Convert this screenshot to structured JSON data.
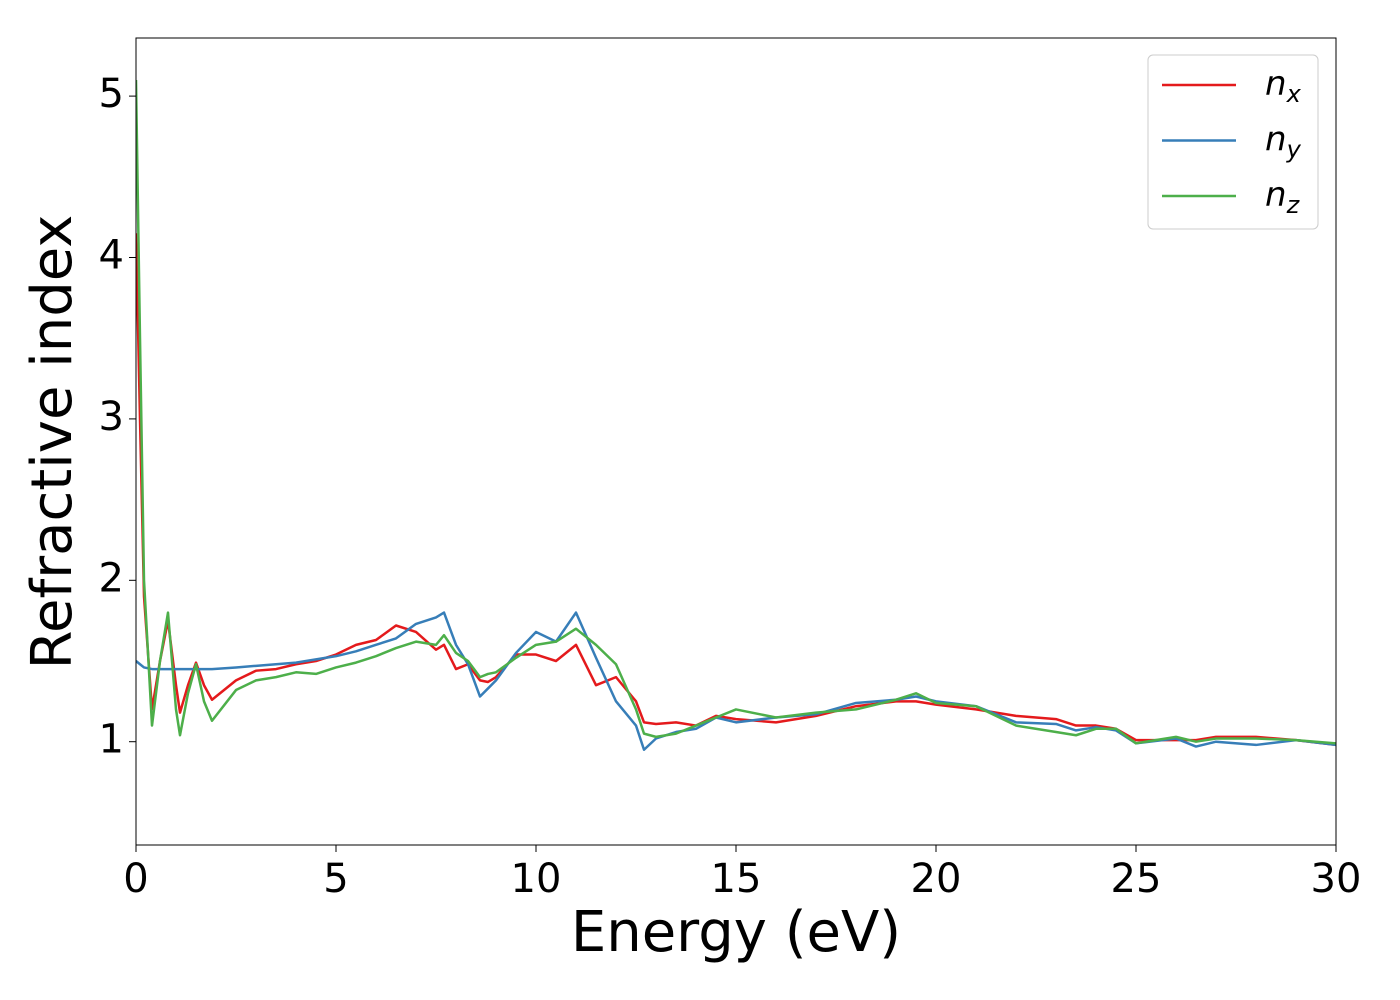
{
  "chart_data": {
    "type": "line",
    "x_label": "Energy (eV)",
    "y_label": "Refractive index",
    "xlim": [
      0,
      30
    ],
    "ylim": [
      0.36,
      5.36
    ],
    "xticks": [
      0,
      5,
      10,
      15,
      20,
      25,
      30
    ],
    "yticks": [
      1,
      2,
      3,
      4,
      5
    ],
    "grid": false,
    "legend": "upper right",
    "x": [
      0,
      0.1,
      0.2,
      0.4,
      0.6,
      0.8,
      1.0,
      1.1,
      1.3,
      1.5,
      1.7,
      1.9,
      2.5,
      3,
      3.5,
      4,
      4.5,
      5,
      5.5,
      6,
      6.5,
      7,
      7.5,
      7.7,
      8,
      8.3,
      8.6,
      8.8,
      9,
      9.5,
      10,
      10.5,
      11,
      11.5,
      12,
      12.5,
      12.7,
      13,
      13.5,
      14,
      14.5,
      15,
      16,
      17,
      18,
      19,
      19.5,
      20,
      21,
      22,
      23,
      23.5,
      24,
      24.5,
      25,
      26,
      26.5,
      27,
      28,
      29,
      30
    ],
    "series": [
      {
        "name": "n_x",
        "color": "#e41a1c",
        "values": [
          4.15,
          3.0,
          1.9,
          1.2,
          1.5,
          1.75,
          1.35,
          1.18,
          1.35,
          1.49,
          1.35,
          1.26,
          1.38,
          1.44,
          1.45,
          1.48,
          1.5,
          1.54,
          1.6,
          1.63,
          1.72,
          1.68,
          1.57,
          1.6,
          1.45,
          1.48,
          1.38,
          1.37,
          1.4,
          1.54,
          1.54,
          1.5,
          1.6,
          1.35,
          1.4,
          1.25,
          1.12,
          1.11,
          1.12,
          1.1,
          1.16,
          1.14,
          1.12,
          1.16,
          1.22,
          1.25,
          1.25,
          1.23,
          1.2,
          1.16,
          1.14,
          1.1,
          1.1,
          1.08,
          1.01,
          1.01,
          1.01,
          1.03,
          1.03,
          1.01,
          0.98
        ]
      },
      {
        "name": "n_y",
        "color": "#377eb8",
        "values": [
          1.5,
          1.48,
          1.46,
          1.45,
          1.45,
          1.45,
          1.45,
          1.45,
          1.45,
          1.45,
          1.45,
          1.45,
          1.46,
          1.47,
          1.48,
          1.49,
          1.51,
          1.53,
          1.56,
          1.6,
          1.64,
          1.73,
          1.77,
          1.8,
          1.6,
          1.48,
          1.28,
          1.33,
          1.38,
          1.55,
          1.68,
          1.62,
          1.8,
          1.52,
          1.25,
          1.1,
          0.95,
          1.02,
          1.06,
          1.08,
          1.15,
          1.12,
          1.15,
          1.17,
          1.24,
          1.26,
          1.28,
          1.25,
          1.22,
          1.12,
          1.11,
          1.07,
          1.09,
          1.07,
          0.99,
          1.02,
          0.97,
          1.0,
          0.98,
          1.01,
          0.98
        ]
      },
      {
        "name": "n_z",
        "color": "#4daf4a",
        "values": [
          5.1,
          3.5,
          2.0,
          1.1,
          1.5,
          1.8,
          1.2,
          1.04,
          1.3,
          1.48,
          1.25,
          1.13,
          1.32,
          1.38,
          1.4,
          1.43,
          1.42,
          1.46,
          1.49,
          1.53,
          1.58,
          1.62,
          1.6,
          1.66,
          1.55,
          1.5,
          1.4,
          1.42,
          1.43,
          1.52,
          1.6,
          1.62,
          1.7,
          1.6,
          1.48,
          1.2,
          1.05,
          1.03,
          1.05,
          1.1,
          1.15,
          1.2,
          1.15,
          1.18,
          1.2,
          1.26,
          1.3,
          1.24,
          1.22,
          1.1,
          1.06,
          1.04,
          1.08,
          1.08,
          0.99,
          1.03,
          1.0,
          1.02,
          1.02,
          1.01,
          0.99
        ]
      }
    ]
  }
}
